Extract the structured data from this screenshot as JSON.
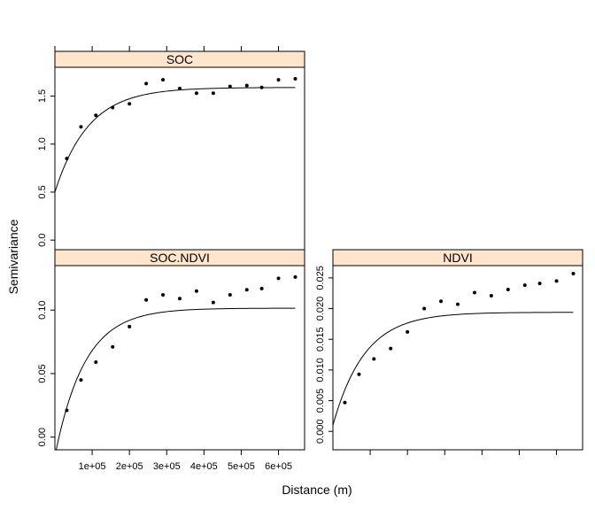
{
  "chart_data": {
    "type": "scatter",
    "xlabel": "Distance (m)",
    "ylabel": "Semivariance",
    "x_tick_labels": [
      "1e+05",
      "2e+05",
      "3e+05",
      "4e+05",
      "5e+05",
      "6e+05"
    ],
    "x_ticks": [
      100000,
      200000,
      300000,
      400000,
      500000,
      600000
    ],
    "xlim": [
      0,
      670000
    ],
    "panels": [
      {
        "id": "soc",
        "title": "SOC",
        "ylim": [
          -0.1,
          1.8
        ],
        "y_ticks": [
          0.0,
          0.5,
          1.0,
          1.5
        ],
        "y_tick_labels": [
          "0.0",
          "0.5",
          "1.0",
          "1.5"
        ],
        "points": [
          [
            32000,
            0.85
          ],
          [
            70000,
            1.18
          ],
          [
            110000,
            1.3
          ],
          [
            155000,
            1.38
          ],
          [
            200000,
            1.42
          ],
          [
            245000,
            1.63
          ],
          [
            290000,
            1.67
          ],
          [
            335000,
            1.58
          ],
          [
            380000,
            1.53
          ],
          [
            425000,
            1.53
          ],
          [
            470000,
            1.6
          ],
          [
            515000,
            1.61
          ],
          [
            555000,
            1.59
          ],
          [
            600000,
            1.67
          ],
          [
            645000,
            1.68
          ]
        ],
        "model": {
          "nugget": 0.5,
          "sill": 1.59,
          "range": 90000,
          "x_start": 0
        }
      },
      {
        "id": "socndvi",
        "title": "SOC.NDVI",
        "ylim": [
          -0.01,
          0.135
        ],
        "y_ticks": [
          0.0,
          0.05,
          0.1
        ],
        "y_tick_labels": [
          "0.00",
          "0.05",
          "0.10"
        ],
        "points": [
          [
            32000,
            0.021
          ],
          [
            70000,
            0.045
          ],
          [
            110000,
            0.059
          ],
          [
            155000,
            0.071
          ],
          [
            200000,
            0.087
          ],
          [
            245000,
            0.108
          ],
          [
            290000,
            0.112
          ],
          [
            335000,
            0.109
          ],
          [
            380000,
            0.115
          ],
          [
            425000,
            0.106
          ],
          [
            470000,
            0.112
          ],
          [
            515000,
            0.116
          ],
          [
            555000,
            0.117
          ],
          [
            600000,
            0.125
          ],
          [
            645000,
            0.126
          ]
        ],
        "model": {
          "nugget": -0.015,
          "sill": 0.1015,
          "range": 80000,
          "x_start": 0
        }
      },
      {
        "id": "ndvi",
        "title": "NDVI",
        "ylim": [
          -0.003,
          0.027
        ],
        "y_ticks": [
          0.0,
          0.005,
          0.01,
          0.015,
          0.02,
          0.025
        ],
        "y_tick_labels": [
          "0.000",
          "0.005",
          "0.010",
          "0.015",
          "0.020",
          "0.025"
        ],
        "points": [
          [
            32000,
            0.0047
          ],
          [
            70000,
            0.0093
          ],
          [
            110000,
            0.0118
          ],
          [
            155000,
            0.0135
          ],
          [
            200000,
            0.0162
          ],
          [
            245000,
            0.02
          ],
          [
            290000,
            0.0212
          ],
          [
            335000,
            0.0207
          ],
          [
            380000,
            0.0226
          ],
          [
            425000,
            0.0221
          ],
          [
            470000,
            0.0231
          ],
          [
            515000,
            0.0238
          ],
          [
            555000,
            0.0241
          ],
          [
            600000,
            0.0245
          ],
          [
            645000,
            0.0257
          ]
        ],
        "model": {
          "nugget": 0.001,
          "sill": 0.0194,
          "range": 85000,
          "x_start": 0
        }
      }
    ],
    "colors": {
      "strip": "#ffe5cc",
      "line": "#000000",
      "points": "#000000"
    }
  }
}
